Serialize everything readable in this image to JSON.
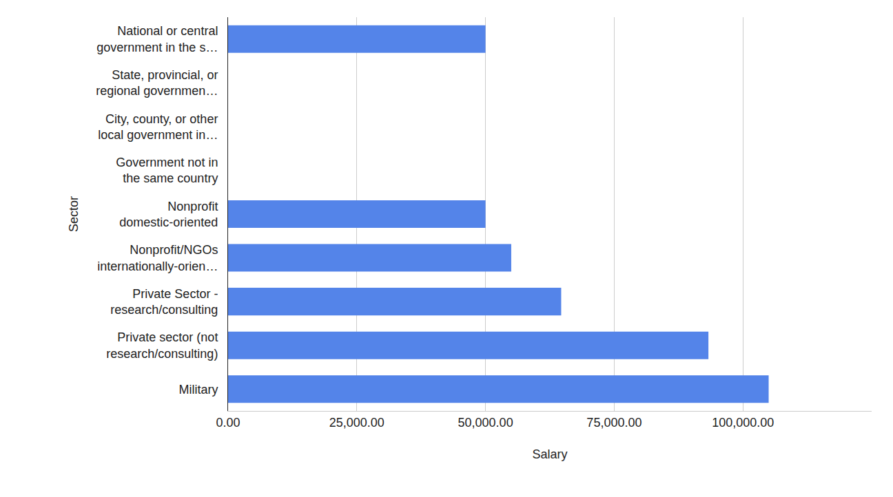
{
  "chart_data": {
    "type": "bar",
    "orientation": "horizontal",
    "x_label": "Salary",
    "y_label": "Sector",
    "categories": [
      "National or central government in the s…",
      "State, provincial, or regional governmen…",
      "City, county, or other local government in…",
      "Government not in the same country",
      "Nonprofit domestic-oriented",
      "Nonprofit/NGOs internationally-orien…",
      "Private Sector - research/consulting",
      "Private sector (not research/consulting)",
      "Military"
    ],
    "values": [
      50000,
      null,
      null,
      null,
      50000,
      55000,
      64700,
      93300,
      105000
    ],
    "color": "#5484e9",
    "xlim": [
      0,
      125000
    ],
    "xticks": [
      {
        "value": 0,
        "label": "0.00"
      },
      {
        "value": 25000,
        "label": "25,000.00"
      },
      {
        "value": 50000,
        "label": "50,000.00"
      },
      {
        "value": 75000,
        "label": "75,000.00"
      },
      {
        "value": 100000,
        "label": "100,000.00"
      }
    ],
    "grid": true
  }
}
